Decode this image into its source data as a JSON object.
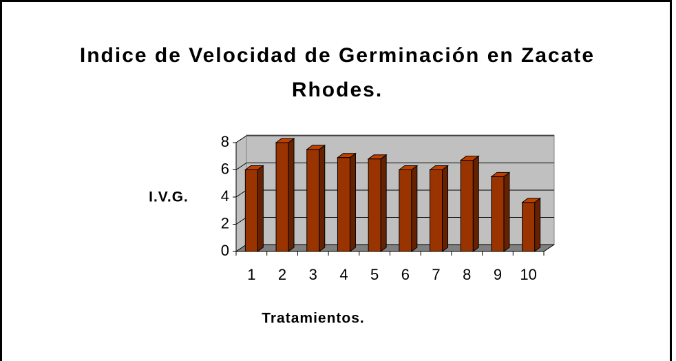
{
  "chart_data": {
    "type": "bar3d",
    "title": "Indice de Velocidad de Germinación en Zacate Rhodes.",
    "y_label": "I.V.G.",
    "x_label": "Tratamientos.",
    "categories": [
      "1",
      "2",
      "3",
      "4",
      "5",
      "6",
      "7",
      "8",
      "9",
      "10"
    ],
    "values": [
      6.0,
      8.0,
      7.5,
      6.9,
      6.8,
      6.0,
      6.0,
      6.7,
      5.5,
      3.6
    ],
    "color": "#993300",
    "ylim": [
      0,
      8
    ],
    "yticks": [
      0,
      2,
      4,
      6,
      8
    ],
    "grid": true
  }
}
